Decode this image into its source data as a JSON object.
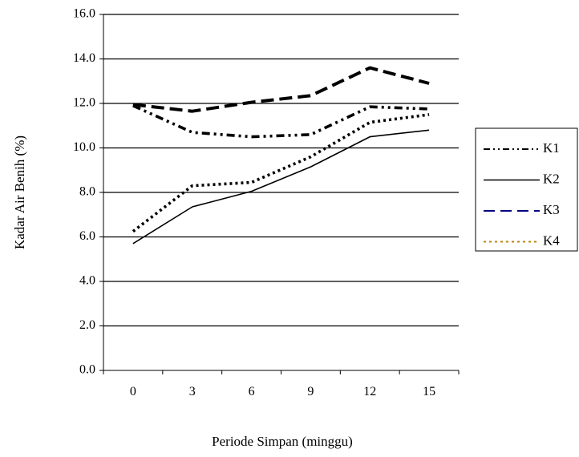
{
  "chart_data": {
    "type": "line",
    "title": "",
    "xlabel": "Periode Simpan (minggu)",
    "ylabel": "Kadar Air Benih (%)",
    "ylim": [
      0,
      16
    ],
    "y_ticks": [
      "0.0",
      "2.0",
      "4.0",
      "6.0",
      "8.0",
      "10.0",
      "12.0",
      "14.0",
      "16.0"
    ],
    "categories": [
      "0",
      "3",
      "6",
      "9",
      "12",
      "15"
    ],
    "grid": "horizontal",
    "legend_position": "right",
    "series": [
      {
        "name": "K1",
        "values": [
          11.9,
          10.7,
          10.5,
          10.6,
          11.85,
          11.75
        ],
        "color": "#000000",
        "dash": "dash-dot-dot"
      },
      {
        "name": "K2",
        "values": [
          5.7,
          7.35,
          8.05,
          9.15,
          10.5,
          10.8
        ],
        "color": "#000000",
        "dash": "solid"
      },
      {
        "name": "K3",
        "values": [
          11.95,
          11.65,
          12.05,
          12.35,
          13.6,
          12.9
        ],
        "color": "#000080",
        "dash": "long-dash"
      },
      {
        "name": "K4",
        "values": [
          6.25,
          8.3,
          8.45,
          9.6,
          11.15,
          11.5
        ],
        "color": "#b8860b",
        "dash": "dotted"
      }
    ]
  }
}
